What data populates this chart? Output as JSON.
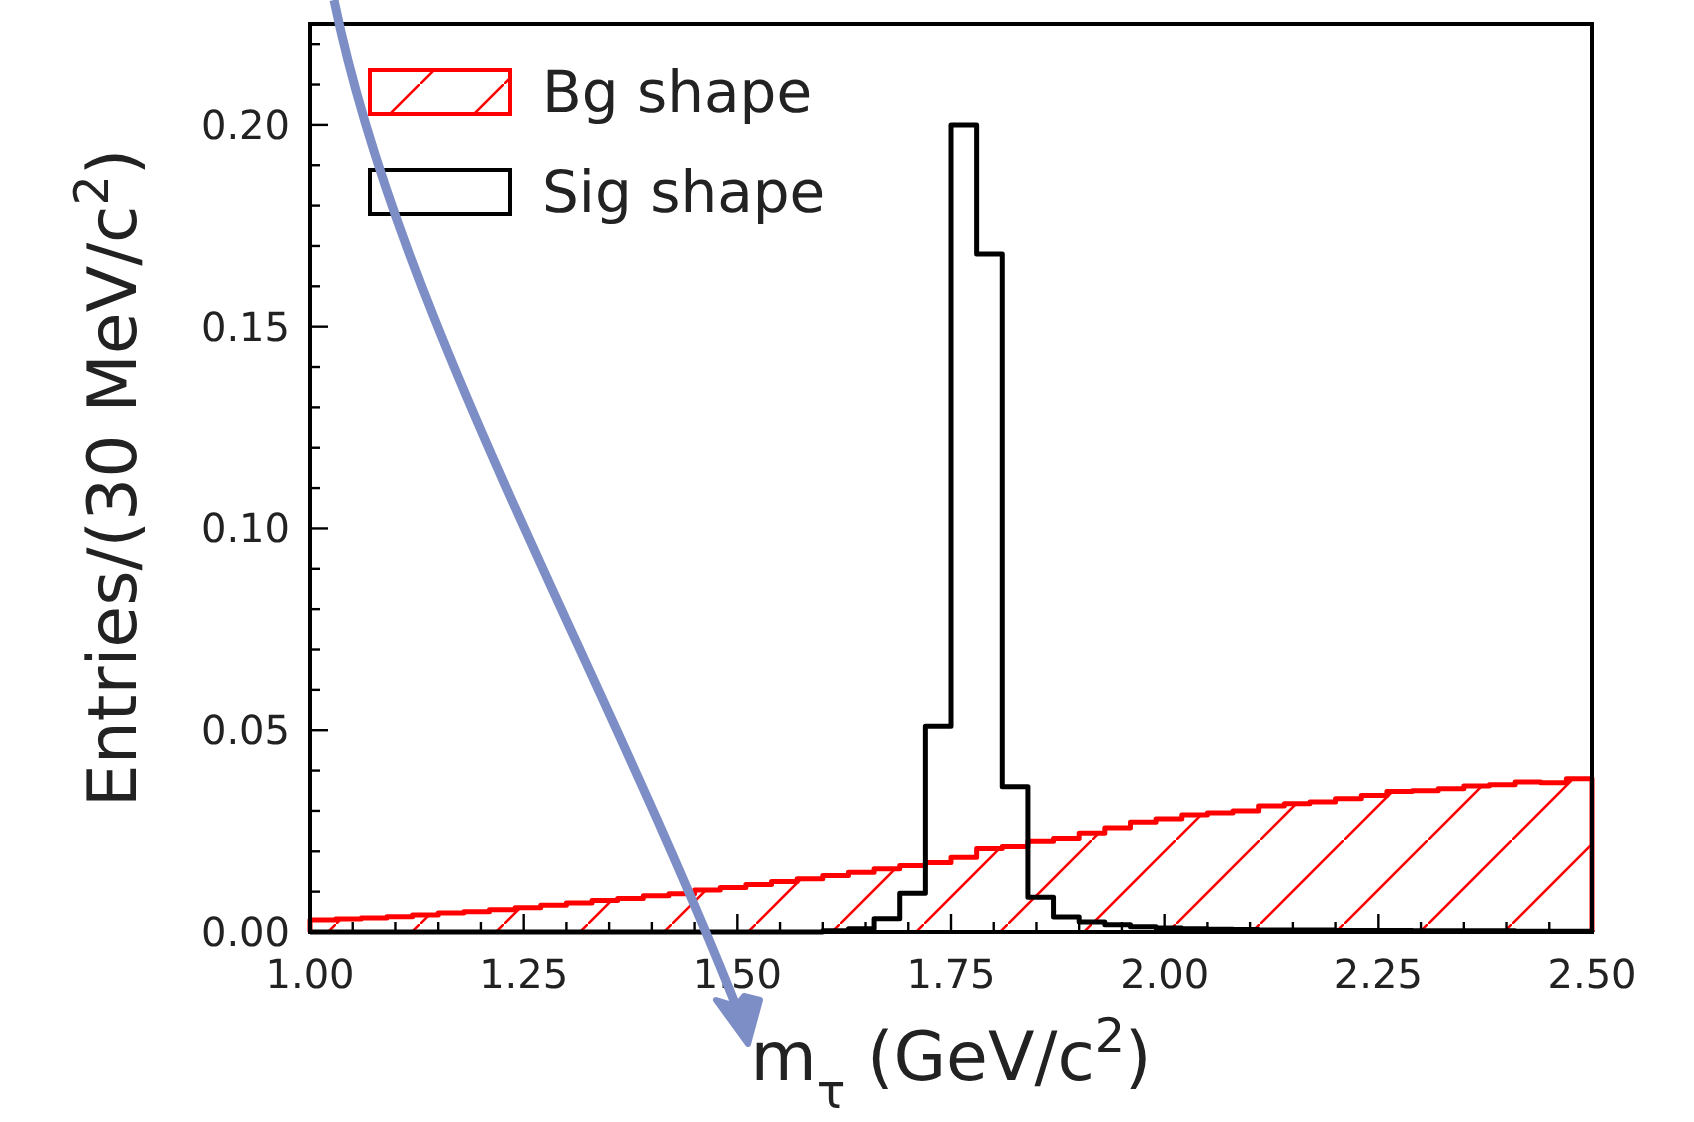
{
  "chart_data": {
    "type": "histogram",
    "xlabel": "m$_{τ}$ (GeV/c$^{2}$)",
    "ylabel": "Entries/(30 MeV/c$^{2}$)",
    "bins": [
      1.0,
      1.03,
      1.06,
      1.09,
      1.12,
      1.15,
      1.18,
      1.21,
      1.24,
      1.27,
      1.3,
      1.33,
      1.36,
      1.39,
      1.42,
      1.45,
      1.48,
      1.51,
      1.54,
      1.57,
      1.6,
      1.63,
      1.66,
      1.69,
      1.72,
      1.75,
      1.78,
      1.81,
      1.84,
      1.87,
      1.9,
      1.93,
      1.96,
      1.99,
      2.02,
      2.05,
      2.08,
      2.11,
      2.14,
      2.17,
      2.2,
      2.23,
      2.26,
      2.29,
      2.32,
      2.35,
      2.38,
      2.41,
      2.44,
      2.47,
      2.5
    ],
    "series": [
      {
        "name": "Bg shape",
        "color": "#ff0000",
        "values": [
          0.003,
          0.0032,
          0.0035,
          0.0038,
          0.0042,
          0.0047,
          0.005,
          0.0055,
          0.006,
          0.0066,
          0.0072,
          0.0078,
          0.0083,
          0.009,
          0.0095,
          0.0104,
          0.011,
          0.0118,
          0.0125,
          0.0132,
          0.014,
          0.0148,
          0.0157,
          0.0165,
          0.0172,
          0.0185,
          0.0207,
          0.0212,
          0.0225,
          0.0232,
          0.0245,
          0.0258,
          0.0272,
          0.028,
          0.029,
          0.0295,
          0.03,
          0.0312,
          0.0318,
          0.0322,
          0.033,
          0.0338,
          0.0348,
          0.035,
          0.0355,
          0.0362,
          0.0365,
          0.0372,
          0.037,
          0.038
        ]
      },
      {
        "name": "Sig shape",
        "color": "#000000",
        "values": [
          0,
          0,
          0,
          0,
          0,
          0,
          0,
          0,
          0,
          0,
          0,
          0,
          0,
          0,
          0,
          0,
          0,
          0,
          0,
          0,
          0.0003,
          0.0008,
          0.0033,
          0.0096,
          0.051,
          0.2,
          0.168,
          0.036,
          0.0086,
          0.0037,
          0.0025,
          0.0018,
          0.0013,
          0.001,
          0.0008,
          0.0007,
          0.0006,
          0.0005,
          0.0005,
          0.0005,
          0.0004,
          0.0004,
          0.0004,
          0.0003,
          0.0003,
          0.0003,
          0.0003,
          0.0002,
          0.0002,
          0.0002
        ]
      }
    ],
    "xlim": [
      1.0,
      2.5
    ],
    "ylim": [
      0,
      0.225
    ],
    "xticks": [
      {
        "value": 1.0,
        "label": "1.00"
      },
      {
        "value": 1.05,
        "label": null
      },
      {
        "value": 1.1,
        "label": null
      },
      {
        "value": 1.15,
        "label": null
      },
      {
        "value": 1.2,
        "label": null
      },
      {
        "value": 1.25,
        "label": "1.25"
      },
      {
        "value": 1.3,
        "label": null
      },
      {
        "value": 1.35,
        "label": null
      },
      {
        "value": 1.4,
        "label": null
      },
      {
        "value": 1.45,
        "label": null
      },
      {
        "value": 1.5,
        "label": "1.50"
      },
      {
        "value": 1.55,
        "label": null
      },
      {
        "value": 1.6,
        "label": null
      },
      {
        "value": 1.65,
        "label": null
      },
      {
        "value": 1.7,
        "label": null
      },
      {
        "value": 1.75,
        "label": "1.75"
      },
      {
        "value": 1.8,
        "label": null
      },
      {
        "value": 1.85,
        "label": null
      },
      {
        "value": 1.9,
        "label": null
      },
      {
        "value": 1.95,
        "label": null
      },
      {
        "value": 2.0,
        "label": "2.00"
      },
      {
        "value": 2.05,
        "label": null
      },
      {
        "value": 2.1,
        "label": null
      },
      {
        "value": 2.15,
        "label": null
      },
      {
        "value": 2.2,
        "label": null
      },
      {
        "value": 2.25,
        "label": "2.25"
      },
      {
        "value": 2.3,
        "label": null
      },
      {
        "value": 2.35,
        "label": null
      },
      {
        "value": 2.4,
        "label": null
      },
      {
        "value": 2.45,
        "label": null
      },
      {
        "value": 2.5,
        "label": "2.50"
      }
    ],
    "yticks": [
      {
        "value": 0,
        "label": "0.00"
      },
      {
        "value": 0.01,
        "label": null
      },
      {
        "value": 0.02,
        "label": null
      },
      {
        "value": 0.03,
        "label": null
      },
      {
        "value": 0.04,
        "label": null
      },
      {
        "value": 0.05,
        "label": "0.05"
      },
      {
        "value": 0.06,
        "label": null
      },
      {
        "value": 0.07,
        "label": null
      },
      {
        "value": 0.08,
        "label": null
      },
      {
        "value": 0.09,
        "label": null
      },
      {
        "value": 0.1,
        "label": "0.10"
      },
      {
        "value": 0.11,
        "label": null
      },
      {
        "value": 0.12,
        "label": null
      },
      {
        "value": 0.13,
        "label": null
      },
      {
        "value": 0.14,
        "label": null
      },
      {
        "value": 0.15,
        "label": "0.15"
      },
      {
        "value": 0.16,
        "label": null
      },
      {
        "value": 0.17,
        "label": null
      },
      {
        "value": 0.18,
        "label": null
      },
      {
        "value": 0.19,
        "label": null
      },
      {
        "value": 0.2,
        "label": "0.20"
      },
      {
        "value": 0.21,
        "label": null
      },
      {
        "value": 0.22,
        "label": null
      }
    ],
    "legend": "top left",
    "grid": false
  }
}
